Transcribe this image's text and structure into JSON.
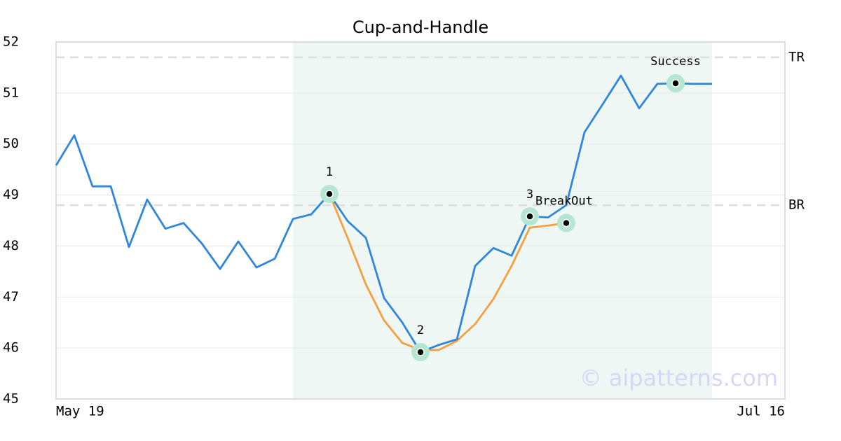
{
  "chart_data": {
    "type": "line",
    "title": "Cup-and-Handle",
    "categories": [
      "May 19",
      null,
      null,
      null,
      null,
      null,
      null,
      null,
      null,
      null,
      null,
      null,
      null,
      null,
      null,
      null,
      null,
      null,
      null,
      null,
      null,
      null,
      null,
      null,
      null,
      null,
      null,
      null,
      null,
      null,
      null,
      null,
      null,
      null,
      null,
      null,
      null,
      null,
      null,
      null,
      "Jul 16"
    ],
    "series": [
      {
        "color": "#2e86de",
        "values": [
          49.58,
          50.17,
          49.17,
          49.17,
          47.98,
          48.91,
          48.34,
          48.45,
          48.05,
          47.55,
          48.09,
          47.58,
          47.75,
          48.53,
          48.62,
          49.02,
          48.49,
          48.16,
          46.98,
          46.5,
          45.92,
          46.06,
          46.17,
          47.61,
          47.96,
          47.81,
          48.58,
          48.56,
          48.8,
          50.23,
          50.78,
          51.34,
          50.7,
          51.18,
          51.19,
          51.18,
          51.18,
          null,
          null,
          null,
          null
        ]
      },
      {
        "color": "#f4a040",
        "values": [
          null,
          null,
          null,
          null,
          null,
          null,
          null,
          null,
          null,
          null,
          null,
          null,
          null,
          null,
          null,
          49.02,
          48.16,
          47.25,
          46.54,
          46.1,
          45.96,
          45.96,
          46.14,
          46.47,
          46.96,
          47.61,
          48.36,
          48.4,
          48.45,
          null,
          null,
          null,
          null,
          null,
          null,
          null,
          null,
          null,
          null,
          null,
          null
        ]
      }
    ],
    "points": [
      {
        "label": "1",
        "x": 15,
        "y": 49.02
      },
      {
        "label": "2",
        "x": 20,
        "y": 45.92
      },
      {
        "label": "3",
        "x": 26,
        "y": 48.58
      },
      {
        "label": "BreakOut",
        "x": 28,
        "y": 48.45
      },
      {
        "label": "Success",
        "x": 34,
        "y": 51.19
      }
    ],
    "reference_lines": [
      {
        "label": "TR",
        "value": 51.7
      },
      {
        "label": "BR",
        "value": 48.8
      }
    ],
    "shaded_range": [
      13,
      36
    ],
    "ylim": [
      45,
      52
    ],
    "yticks": [
      45,
      46,
      47,
      48,
      49,
      50,
      51,
      52
    ],
    "grid": true,
    "watermark": "© aipatterns.com"
  }
}
